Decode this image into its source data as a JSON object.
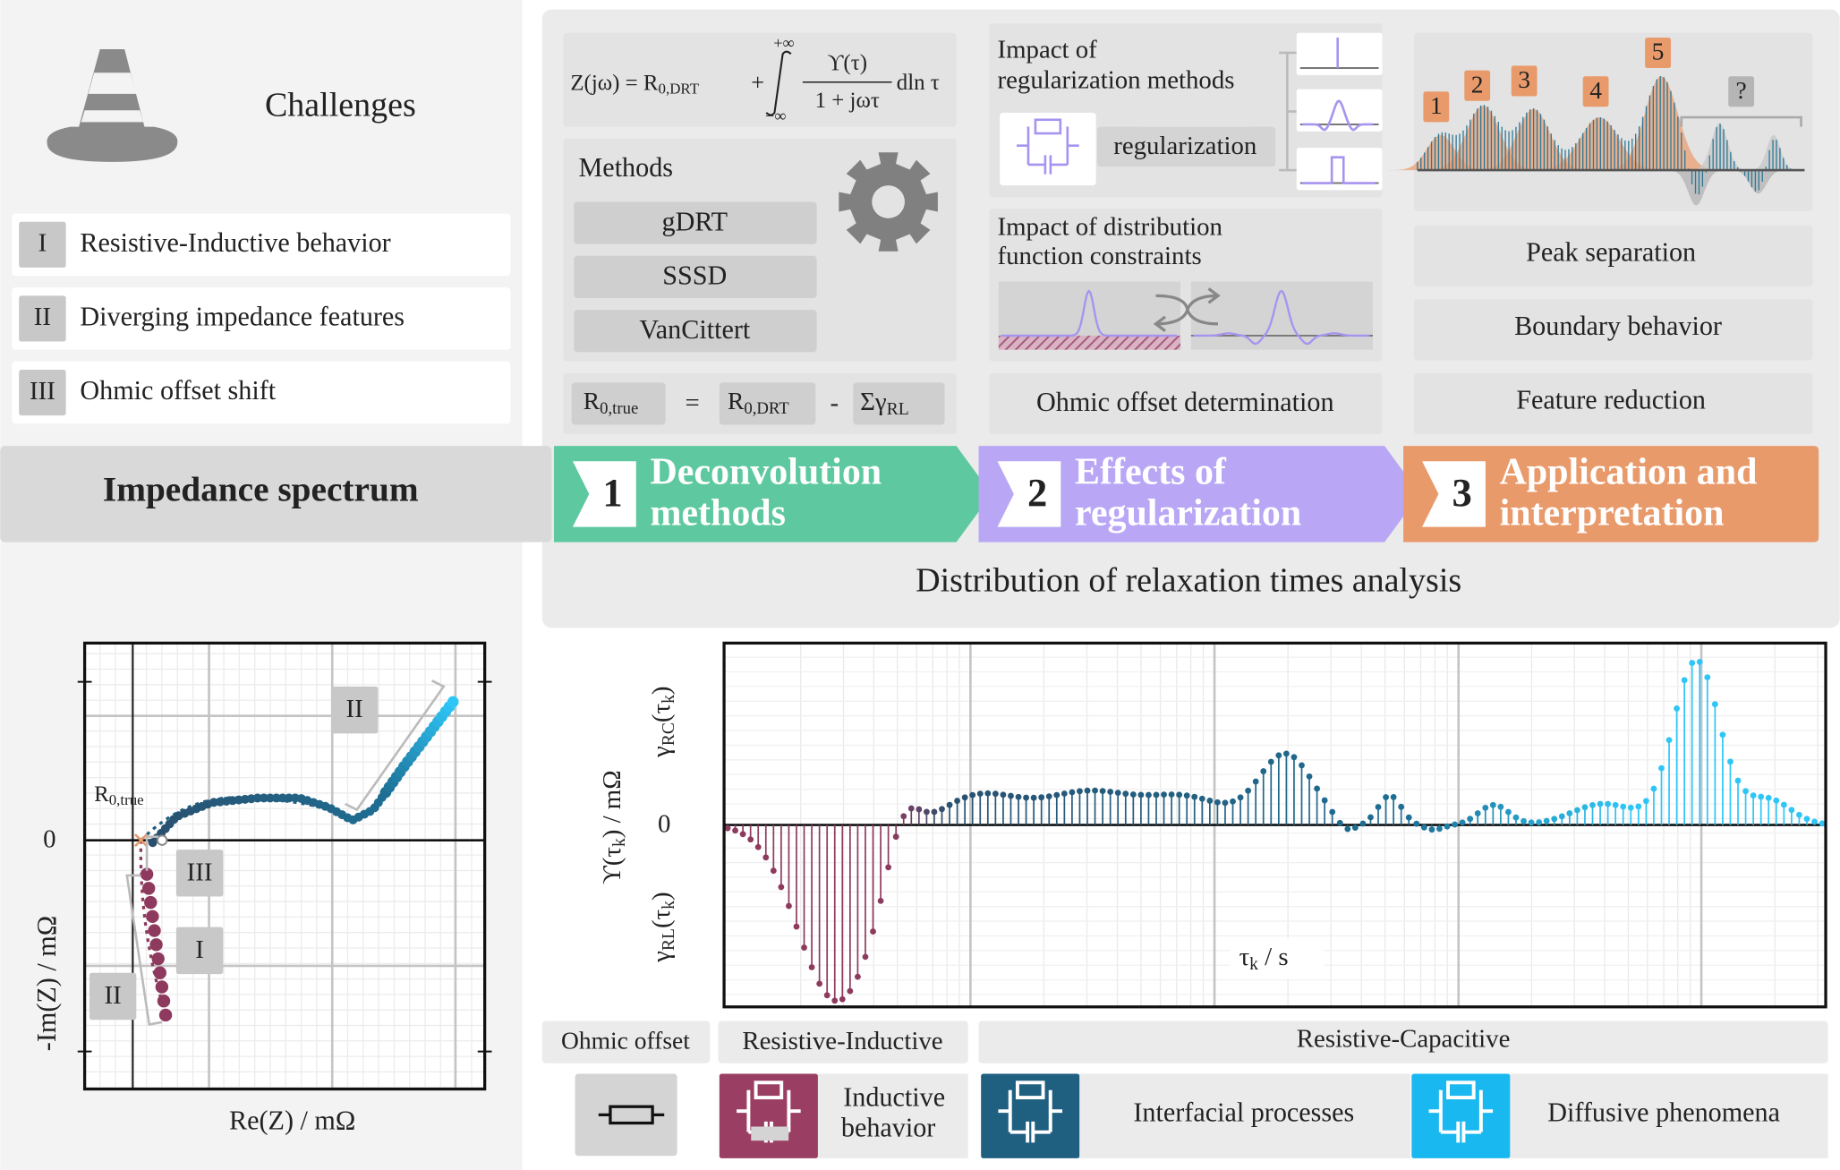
{
  "challenges": {
    "title": "Challenges",
    "items": [
      {
        "numeral": "I",
        "text": "Resistive-Inductive behavior"
      },
      {
        "numeral": "II",
        "text": "Diverging impedance features"
      },
      {
        "numeral": "III",
        "text": "Ohmic offset shift"
      }
    ]
  },
  "input": "Impedance spectrum",
  "formula": {
    "lhs": "Z(jω) = R",
    "lhs_sub": "0,DRT",
    "plus": "+",
    "upper": "+∞",
    "lower": "−∞",
    "numerator": "ϒ(τ)",
    "denominator": "1 + jωτ",
    "tail": "dln τ"
  },
  "methods": {
    "title": "Methods",
    "items": [
      "gDRT",
      "SSSD",
      "VanCittert"
    ]
  },
  "offset_equation": {
    "a": "R",
    "a_sub": "0,true",
    "eq": "=",
    "b": "R",
    "b_sub": "0,DRT",
    "minus": "-",
    "c": "Σγ",
    "c_sub": "RL"
  },
  "regularization": {
    "impact_title_1": "Impact of",
    "impact_title_2": "regularization methods",
    "box": "regularization",
    "constraint_title_1": "Impact of distribution",
    "constraint_title_2": "function constraints",
    "ohmic": "Ohmic offset determination"
  },
  "application": {
    "peaks": [
      "1",
      "2",
      "3",
      "4",
      "5"
    ],
    "unknown": "?",
    "items": [
      "Peak separation",
      "Boundary behavior",
      "Feature reduction"
    ]
  },
  "steps": [
    {
      "number": "1",
      "line1": "Deconvolution",
      "line2": "methods"
    },
    {
      "number": "2",
      "line1": "Effects of",
      "line2": "regularization"
    },
    {
      "number": "3",
      "line1": "Application and",
      "line2": "interpretation"
    }
  ],
  "analysis": "Distribution of relaxation times analysis",
  "nyquist": {
    "zero": "0",
    "r0": "R",
    "r0_sub": "0,true",
    "labels": [
      "II",
      "III",
      "I",
      "II"
    ],
    "xlabel": "Re(Z) / mΩ",
    "ylabel": "-Im(Z) / mΩ"
  },
  "drt": {
    "zero": "0",
    "ylabel": "ϒ(τ",
    "ylabel_sub": "k",
    "ylabel_tail": ") / mΩ",
    "rc": "γ",
    "rc_sub": "RC",
    "rc_tail": "(τ",
    "rc_k": "k",
    "rc_end": ")",
    "rl": "γ",
    "rl_sub": "RL",
    "rl_tail": "(τ",
    "rl_k": "k",
    "rl_end": ")",
    "xlabel": "τ",
    "xlabel_sub": "k",
    "xlabel_tail": " / s"
  },
  "legend": {
    "groups": [
      "Ohmic offset",
      "Resistive-Inductive",
      "Resistive-Capacitive"
    ],
    "inductive_1": "Inductive",
    "inductive_2": "behavior",
    "interfacial": "Interfacial processes",
    "diffusive": "Diffusive phenomena"
  }
}
